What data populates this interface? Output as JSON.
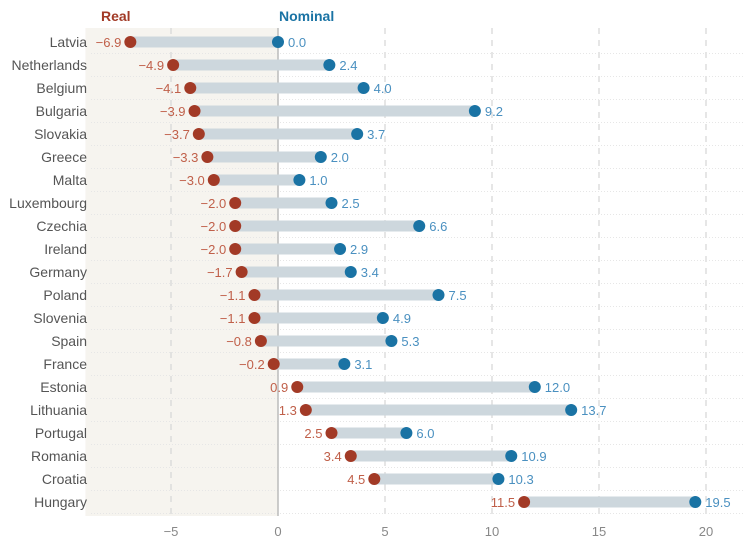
{
  "chart_data": {
    "type": "dumbbell",
    "legend": {
      "real": "Real",
      "nominal": "Nominal"
    },
    "colors": {
      "real": "#a23a26",
      "nominal": "#1a73a4",
      "nominal_text": "#4a90c0",
      "real_text": "#c0604a",
      "bar": "#cdd7dd",
      "negative_region": "#f6f4ef",
      "grid": "#d8d8d8",
      "zero_line": "#bbbbbb"
    },
    "xlim": [
      -9,
      20.5
    ],
    "x_ticks": [
      {
        "value": -5,
        "label": "−5"
      },
      {
        "value": 0,
        "label": "0"
      },
      {
        "value": 5,
        "label": "5"
      },
      {
        "value": 10,
        "label": "10"
      },
      {
        "value": 15,
        "label": "15"
      },
      {
        "value": 20,
        "label": "20"
      }
    ],
    "rows": [
      {
        "country": "Latvia",
        "real": -6.9,
        "nominal": 0.0,
        "real_label": "−6.9",
        "nominal_label": "0.0"
      },
      {
        "country": "Netherlands",
        "real": -4.9,
        "nominal": 2.4,
        "real_label": "−4.9",
        "nominal_label": "2.4"
      },
      {
        "country": "Belgium",
        "real": -4.1,
        "nominal": 4.0,
        "real_label": "−4.1",
        "nominal_label": "4.0"
      },
      {
        "country": "Bulgaria",
        "real": -3.9,
        "nominal": 9.2,
        "real_label": "−3.9",
        "nominal_label": "9.2"
      },
      {
        "country": "Slovakia",
        "real": -3.7,
        "nominal": 3.7,
        "real_label": "−3.7",
        "nominal_label": "3.7"
      },
      {
        "country": "Greece",
        "real": -3.3,
        "nominal": 2.0,
        "real_label": "−3.3",
        "nominal_label": "2.0"
      },
      {
        "country": "Malta",
        "real": -3.0,
        "nominal": 1.0,
        "real_label": "−3.0",
        "nominal_label": "1.0"
      },
      {
        "country": "Luxembourg",
        "real": -2.0,
        "nominal": 2.5,
        "real_label": "−2.0",
        "nominal_label": "2.5"
      },
      {
        "country": "Czechia",
        "real": -2.0,
        "nominal": 6.6,
        "real_label": "−2.0",
        "nominal_label": "6.6"
      },
      {
        "country": "Ireland",
        "real": -2.0,
        "nominal": 2.9,
        "real_label": "−2.0",
        "nominal_label": "2.9"
      },
      {
        "country": "Germany",
        "real": -1.7,
        "nominal": 3.4,
        "real_label": "−1.7",
        "nominal_label": "3.4"
      },
      {
        "country": "Poland",
        "real": -1.1,
        "nominal": 7.5,
        "real_label": "−1.1",
        "nominal_label": "7.5"
      },
      {
        "country": "Slovenia",
        "real": -1.1,
        "nominal": 4.9,
        "real_label": "−1.1",
        "nominal_label": "4.9"
      },
      {
        "country": "Spain",
        "real": -0.8,
        "nominal": 5.3,
        "real_label": "−0.8",
        "nominal_label": "5.3"
      },
      {
        "country": "France",
        "real": -0.2,
        "nominal": 3.1,
        "real_label": "−0.2",
        "nominal_label": "3.1"
      },
      {
        "country": "Estonia",
        "real": 0.9,
        "nominal": 12.0,
        "real_label": "0.9",
        "nominal_label": "12.0"
      },
      {
        "country": "Lithuania",
        "real": 1.3,
        "nominal": 13.7,
        "real_label": "1.3",
        "nominal_label": "13.7"
      },
      {
        "country": "Portugal",
        "real": 2.5,
        "nominal": 6.0,
        "real_label": "2.5",
        "nominal_label": "6.0"
      },
      {
        "country": "Romania",
        "real": 3.4,
        "nominal": 10.9,
        "real_label": "3.4",
        "nominal_label": "10.9"
      },
      {
        "country": "Croatia",
        "real": 4.5,
        "nominal": 10.3,
        "real_label": "4.5",
        "nominal_label": "10.3"
      },
      {
        "country": "Hungary",
        "real": 11.5,
        "nominal": 19.5,
        "real_label": "11.5",
        "nominal_label": "19.5"
      }
    ]
  }
}
